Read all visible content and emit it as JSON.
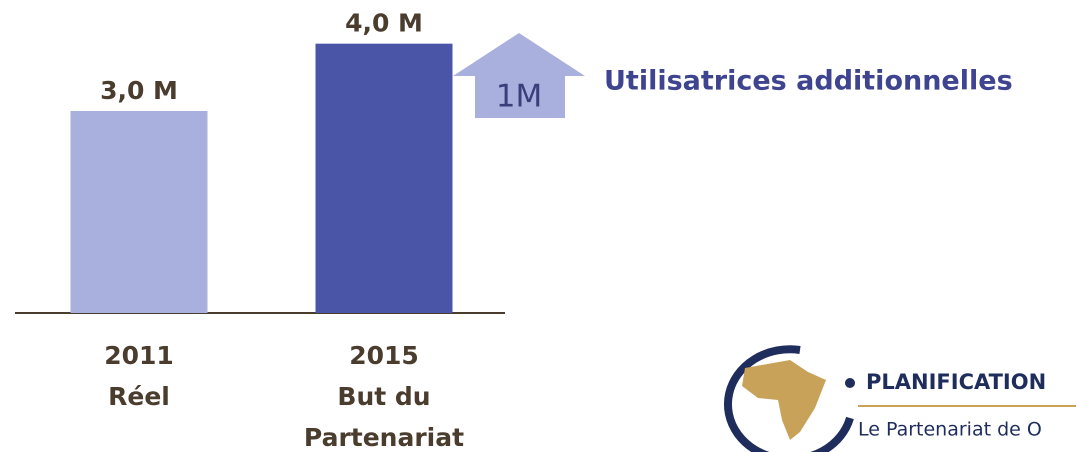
{
  "chart_data": {
    "type": "bar",
    "categories": [
      [
        "2011",
        "Réel"
      ],
      [
        "2015",
        "But du",
        "Partenariat"
      ]
    ],
    "values": [
      3.0,
      4.0
    ],
    "value_labels": [
      "3,0 M",
      "4,0 M"
    ],
    "colors": [
      "#aab0de",
      "#4b55a8"
    ],
    "ylim": [
      0,
      4.5
    ],
    "annotations": [
      {
        "text": "1M"
      },
      {
        "text": "Utilisatrices additionnelles"
      }
    ]
  },
  "logo": {
    "title": "PLANIFICATION",
    "subtitle": "Le Partenariat de O"
  }
}
